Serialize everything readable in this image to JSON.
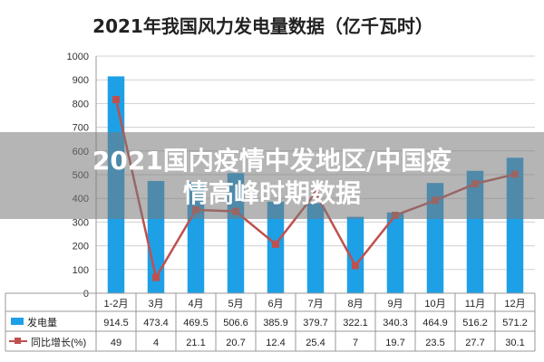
{
  "overlay": {
    "line1": "2021国内疫情中发地区/中国疫",
    "line2": "情高峰时期数据"
  },
  "chart_data": {
    "type": "bar",
    "title": "2021年我国风力发电量数据（亿千瓦时）",
    "categories": [
      "1-2月",
      "3月",
      "4月",
      "5月",
      "6月",
      "7月",
      "8月",
      "9月",
      "10月",
      "11月",
      "12月"
    ],
    "ylim": [
      0,
      1000
    ],
    "yticks": [
      "0",
      "100",
      "200",
      "300",
      "400",
      "500",
      "600",
      "700",
      "800",
      "900",
      "1000"
    ],
    "grid": true,
    "series": [
      {
        "name": "发电量",
        "kind": "bar",
        "color": "#1ea0e6",
        "values": [
          914.5,
          473.4,
          469.5,
          506.6,
          385.9,
          379.7,
          322.1,
          340.3,
          464.9,
          516.2,
          571.2
        ],
        "labels": [
          "914.5",
          "473.4",
          "469.5",
          "506.6",
          "385.9",
          "379.7",
          "322.1",
          "340.3",
          "464.9",
          "516.2",
          "571.2"
        ]
      },
      {
        "name": "同比增长(%)",
        "kind": "line",
        "color": "#c0504d",
        "values": [
          49,
          4,
          21.1,
          20.7,
          12.4,
          25.4,
          7,
          19.7,
          23.5,
          27.7,
          30.1
        ],
        "labels": [
          "49",
          "4",
          "21.1",
          "20.7",
          "12.4",
          "25.4",
          "7",
          "19.7",
          "23.5",
          "27.7",
          "30.1"
        ],
        "ylim": [
          0,
          60
        ]
      }
    ]
  }
}
